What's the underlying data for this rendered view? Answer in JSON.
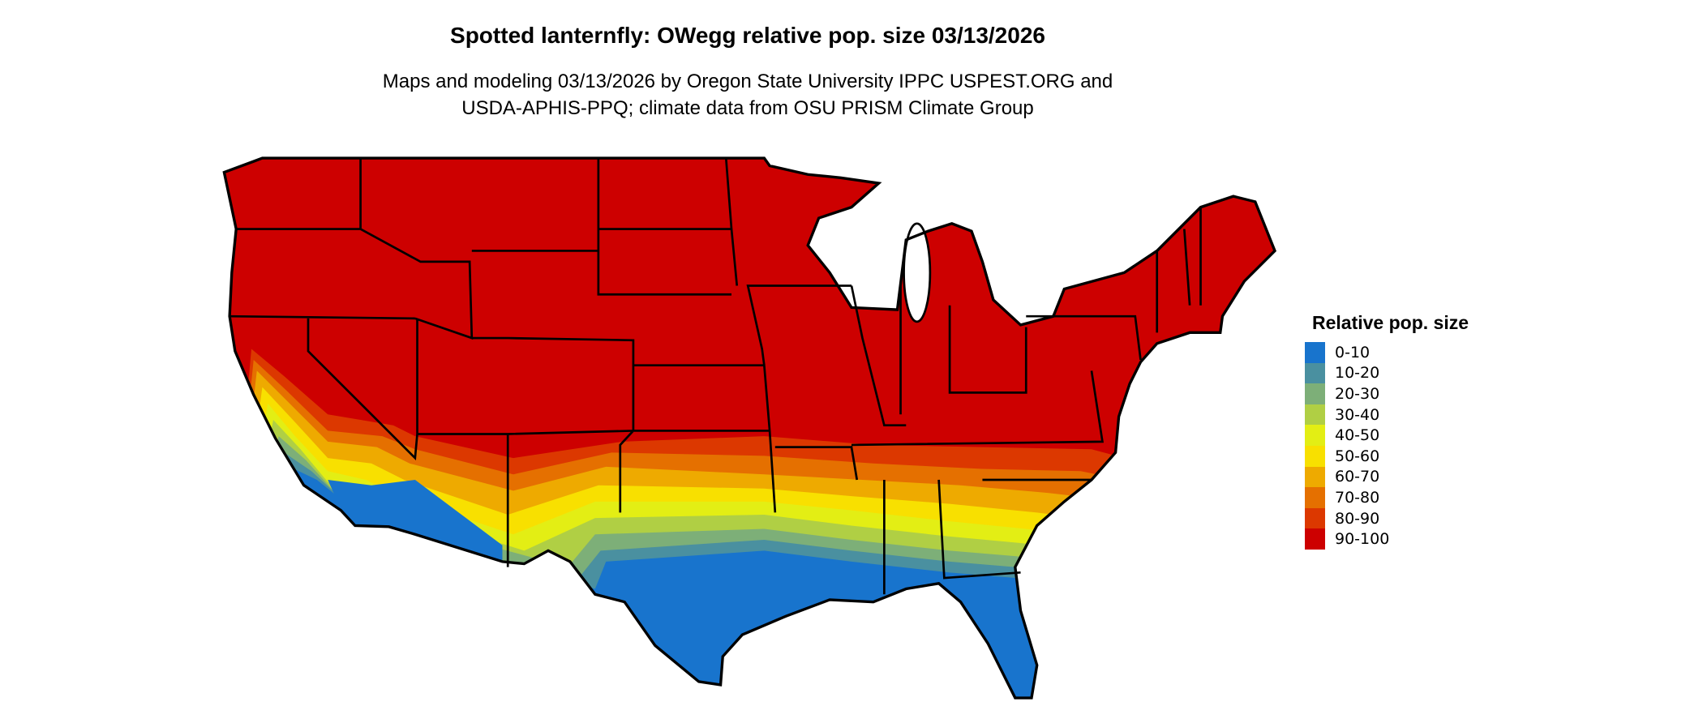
{
  "title": "Spotted lanternfly: OWegg relative pop. size 03/13/2026",
  "subtitle_line1": "Maps and modeling 03/13/2026 by Oregon State University IPPC USPEST.ORG and",
  "subtitle_line2": "USDA-APHIS-PPQ; climate data from OSU PRISM Climate Group",
  "legend": {
    "title": "Relative pop. size",
    "items": [
      {
        "label": "0-10",
        "color": "#1874CD"
      },
      {
        "label": "10-20",
        "color": "#4A90A0"
      },
      {
        "label": "20-30",
        "color": "#7DAF78"
      },
      {
        "label": "30-40",
        "color": "#B0CF44"
      },
      {
        "label": "40-50",
        "color": "#E3EE14"
      },
      {
        "label": "50-60",
        "color": "#F8E000"
      },
      {
        "label": "60-70",
        "color": "#EEAA00"
      },
      {
        "label": "70-80",
        "color": "#E57000"
      },
      {
        "label": "80-90",
        "color": "#DC3800"
      },
      {
        "label": "90-100",
        "color": "#CD0000"
      }
    ]
  }
}
